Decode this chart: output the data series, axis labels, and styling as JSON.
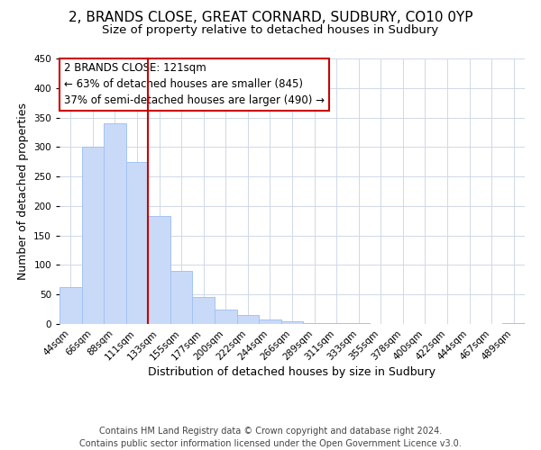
{
  "title": "2, BRANDS CLOSE, GREAT CORNARD, SUDBURY, CO10 0YP",
  "subtitle": "Size of property relative to detached houses in Sudbury",
  "xlabel": "Distribution of detached houses by size in Sudbury",
  "ylabel": "Number of detached properties",
  "footer_line1": "Contains HM Land Registry data © Crown copyright and database right 2024.",
  "footer_line2": "Contains public sector information licensed under the Open Government Licence v3.0.",
  "bar_labels": [
    "44sqm",
    "66sqm",
    "88sqm",
    "111sqm",
    "133sqm",
    "155sqm",
    "177sqm",
    "200sqm",
    "222sqm",
    "244sqm",
    "266sqm",
    "289sqm",
    "311sqm",
    "333sqm",
    "355sqm",
    "378sqm",
    "400sqm",
    "422sqm",
    "444sqm",
    "467sqm",
    "489sqm"
  ],
  "bar_values": [
    62,
    301,
    340,
    275,
    183,
    90,
    46,
    24,
    16,
    8,
    4,
    2,
    1,
    1,
    0,
    0,
    0,
    0,
    0,
    0,
    2
  ],
  "bar_color": "#c9daf8",
  "bar_edgecolor": "#a4c2f4",
  "vline_x": 3.5,
  "vline_color": "#cc0000",
  "annotation_line1": "2 BRANDS CLOSE: 121sqm",
  "annotation_line2": "← 63% of detached houses are smaller (845)",
  "annotation_line3": "37% of semi-detached houses are larger (490) →",
  "ylim": [
    0,
    450
  ],
  "yticks": [
    0,
    50,
    100,
    150,
    200,
    250,
    300,
    350,
    400,
    450
  ],
  "title_fontsize": 11,
  "subtitle_fontsize": 9.5,
  "axis_label_fontsize": 9,
  "tick_fontsize": 7.5,
  "annotation_fontsize": 8.5,
  "footer_fontsize": 7,
  "background_color": "#ffffff",
  "grid_color": "#d0d8e8"
}
